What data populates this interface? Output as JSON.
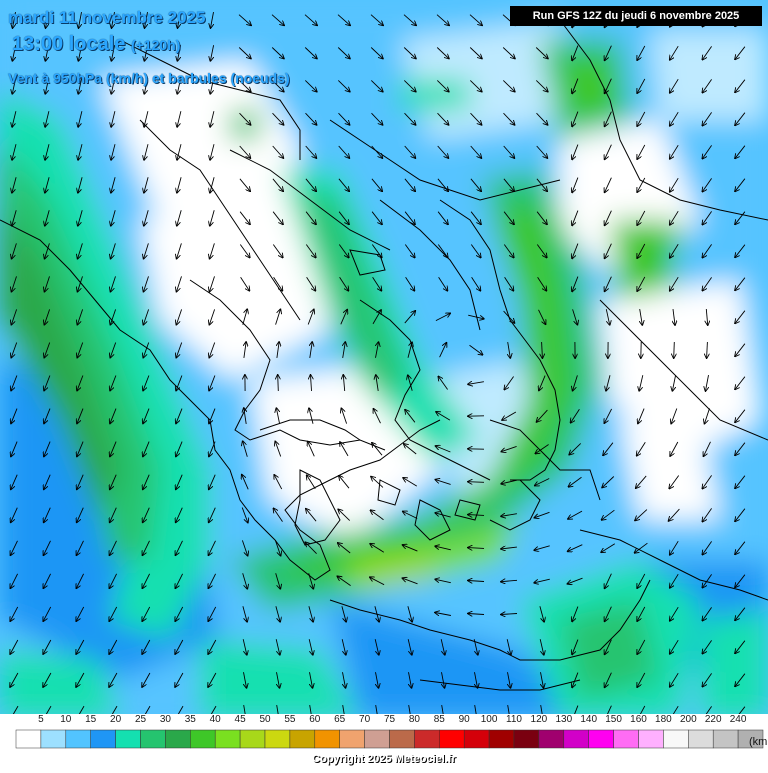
{
  "title": {
    "date": "mardi 11 novembre 2025",
    "time": "13:00 locale",
    "lead": "(+120h)",
    "variable": "Vent à 950hPa (km/h) et barbules (noeuds)"
  },
  "run_label": "Run GFS 12Z du jeudi 6 novembre 2025",
  "legend": {
    "unit": "(km",
    "labels": [
      "5",
      "10",
      "15",
      "20",
      "25",
      "30",
      "35",
      "40",
      "45",
      "50",
      "55",
      "60",
      "65",
      "70",
      "75",
      "80",
      "85",
      "90",
      "100",
      "110",
      "120",
      "130",
      "140",
      "150",
      "160",
      "180",
      "200",
      "220",
      "240"
    ],
    "colors": [
      "#ffffff",
      "#9de0ff",
      "#52c4ff",
      "#1f96f5",
      "#14e0b0",
      "#25c46f",
      "#2aa84a",
      "#3ec728",
      "#7ae020",
      "#a8d81a",
      "#ccd810",
      "#c8a400",
      "#f19300",
      "#f0a36e",
      "#cf9f93",
      "#bb6a4a",
      "#cc2a2a",
      "#ff0000",
      "#d4000a",
      "#a00000",
      "#7a0010",
      "#a0006e",
      "#d200c8",
      "#ff00f0",
      "#ff6cf4",
      "#ffb0ff",
      "#f8f8f8",
      "#dcdcdc",
      "#c4c4c4",
      "#b0b0b0"
    ]
  },
  "copyright": "Copyright 2025 Meteociel.fr"
}
